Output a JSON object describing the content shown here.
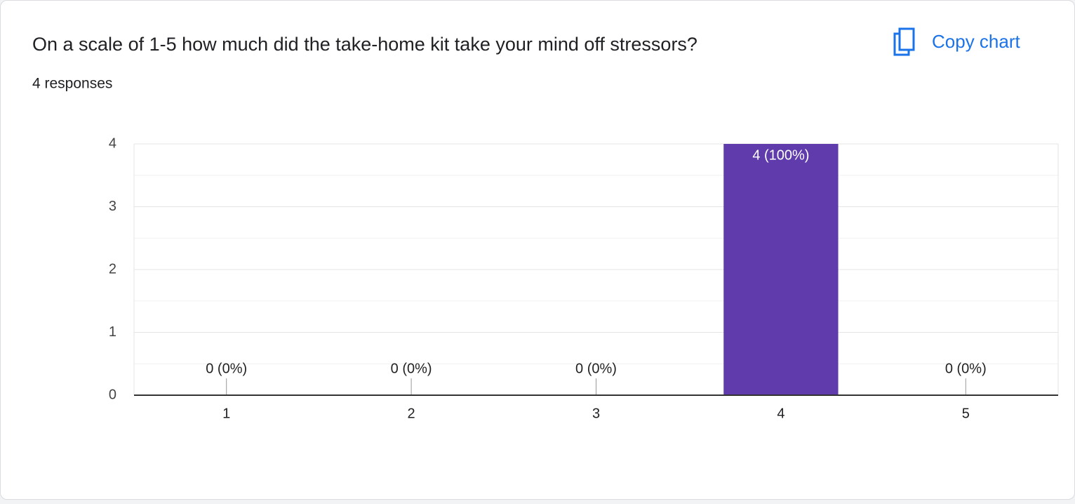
{
  "chart_data": {
    "type": "bar",
    "title": "On a scale of 1-5 how much did the take-home kit take your mind off stressors?",
    "subtitle": "4 responses",
    "button": "Copy chart",
    "categories": [
      "1",
      "2",
      "3",
      "4",
      "5"
    ],
    "values": [
      0,
      0,
      0,
      4,
      0
    ],
    "value_labels": [
      "0 (0%)",
      "0 (0%)",
      "0 (0%)",
      "4 (100%)",
      "0 (0%)"
    ],
    "color": "#5f3bac",
    "ylim": [
      0,
      4
    ],
    "yticks": [
      0,
      1,
      2,
      3,
      4
    ],
    "minor_yticks": [
      0.5,
      1.5,
      2.5,
      3.5
    ],
    "grid": true
  }
}
